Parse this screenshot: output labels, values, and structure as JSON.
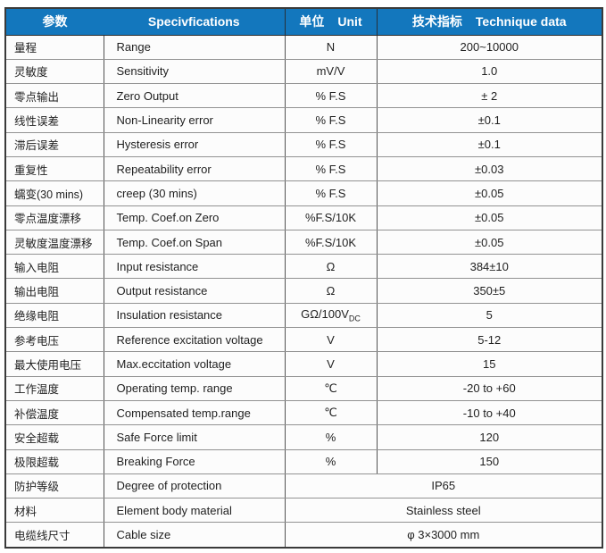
{
  "colors": {
    "header_bg": "#1377bd",
    "header_text": "#ffffff",
    "outer_border": "#3a3a3a",
    "grid_line": "#929292",
    "cell_bg": "#fcfcfc"
  },
  "table": {
    "headers": [
      {
        "cn": "参数",
        "en": ""
      },
      {
        "cn": "",
        "en": "Specivfications"
      },
      {
        "cn": "单位",
        "en": "Unit"
      },
      {
        "cn": "技术指标",
        "en": "Technique data"
      }
    ],
    "rows": [
      {
        "param": "量程",
        "spec": "Range",
        "unit": "N",
        "value": "200~10000"
      },
      {
        "param": "灵敏度",
        "spec": "Sensitivity",
        "unit": "mV/V",
        "value": "1.0"
      },
      {
        "param": "零点输出",
        "spec": "Zero Output",
        "unit": "% F.S",
        "value": "± 2"
      },
      {
        "param": "线性误差",
        "spec": "Non-Linearity error",
        "unit": "% F.S",
        "value": "±0.1"
      },
      {
        "param": "滞后误差",
        "spec": "Hysteresis error",
        "unit": "% F.S",
        "value": "±0.1"
      },
      {
        "param": "重复性",
        "spec": "Repeatability error",
        "unit": "% F.S",
        "value": "±0.03"
      },
      {
        "param": "蠕变(30 mins)",
        "spec": "creep (30 mins)",
        "unit": "% F.S",
        "value": "±0.05"
      },
      {
        "param": "零点温度漂移",
        "spec": "Temp. Coef.on Zero",
        "unit": "%F.S/10K",
        "value": "±0.05"
      },
      {
        "param": "灵敏度温度漂移",
        "spec": "Temp. Coef.on Span",
        "unit": "%F.S/10K",
        "value": "±0.05"
      },
      {
        "param": "输入电阻",
        "spec": "Input resistance",
        "unit": "Ω",
        "value": "384±10"
      },
      {
        "param": "输出电阻",
        "spec": "Output resistance",
        "unit": "Ω",
        "value": "350±5"
      },
      {
        "param": "绝缘电阻",
        "spec": "Insulation resistance",
        "unit": "GΩ/100V",
        "unit_sub": "DC",
        "value": "5"
      },
      {
        "param": "参考电压",
        "spec": "Reference excitation voltage",
        "unit": "V",
        "value": "5-12"
      },
      {
        "param": "最大使用电压",
        "spec": "Max.eccitation voltage",
        "unit": "V",
        "value": "15"
      },
      {
        "param": "工作温度",
        "spec": "Operating temp. range",
        "unit": "℃",
        "value": "-20 to +60"
      },
      {
        "param": "补偿温度",
        "spec": "Compensated temp.range",
        "unit": "℃",
        "value": "-10 to +40"
      },
      {
        "param": "安全超载",
        "spec": "Safe Force limit",
        "unit": "%",
        "value": "120"
      },
      {
        "param": "极限超载",
        "spec": "Breaking Force",
        "unit": "%",
        "value": "150"
      },
      {
        "param": "防护等级",
        "spec": "Degree of protection",
        "merged": true,
        "value": "IP65"
      },
      {
        "param": "材料",
        "spec": "Element body material",
        "merged": true,
        "value": "Stainless steel"
      },
      {
        "param": "电缆线尺寸",
        "spec": "Cable size",
        "merged": true,
        "value": "φ 3×3000 mm"
      }
    ]
  }
}
